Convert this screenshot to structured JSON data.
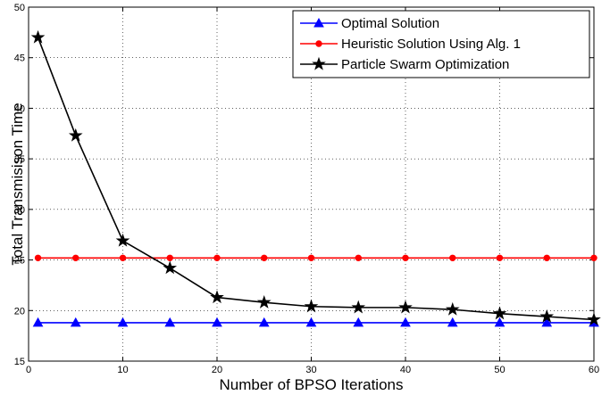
{
  "chart_data": {
    "type": "line",
    "title": "",
    "xlabel": "Number of BPSO Iterations",
    "ylabel": "Total Transmisison Time",
    "xlim": [
      0,
      60
    ],
    "ylim": [
      15,
      50
    ],
    "xticks": [
      0,
      10,
      20,
      30,
      40,
      50,
      60
    ],
    "yticks": [
      15,
      20,
      25,
      30,
      35,
      40,
      45,
      50
    ],
    "grid": true,
    "legend_position": "top-right",
    "x": [
      1,
      5,
      10,
      15,
      20,
      25,
      30,
      35,
      40,
      45,
      50,
      55,
      60
    ],
    "series": [
      {
        "name": "Optimal Solution",
        "color": "#0000ff",
        "marker": "triangle-up",
        "values": [
          18.8,
          18.8,
          18.8,
          18.8,
          18.8,
          18.8,
          18.8,
          18.8,
          18.8,
          18.8,
          18.8,
          18.8,
          18.8
        ]
      },
      {
        "name": "Heuristic Solution Using Alg. 1",
        "color": "#ff0000",
        "marker": "circle",
        "values": [
          25.2,
          25.2,
          25.2,
          25.2,
          25.2,
          25.2,
          25.2,
          25.2,
          25.2,
          25.2,
          25.2,
          25.2,
          25.2
        ]
      },
      {
        "name": "Particle Swarm Optimization",
        "color": "#000000",
        "marker": "star",
        "values": [
          47.0,
          37.3,
          26.9,
          24.2,
          21.3,
          20.8,
          20.4,
          20.3,
          20.3,
          20.1,
          19.7,
          19.4,
          19.1
        ]
      }
    ]
  }
}
